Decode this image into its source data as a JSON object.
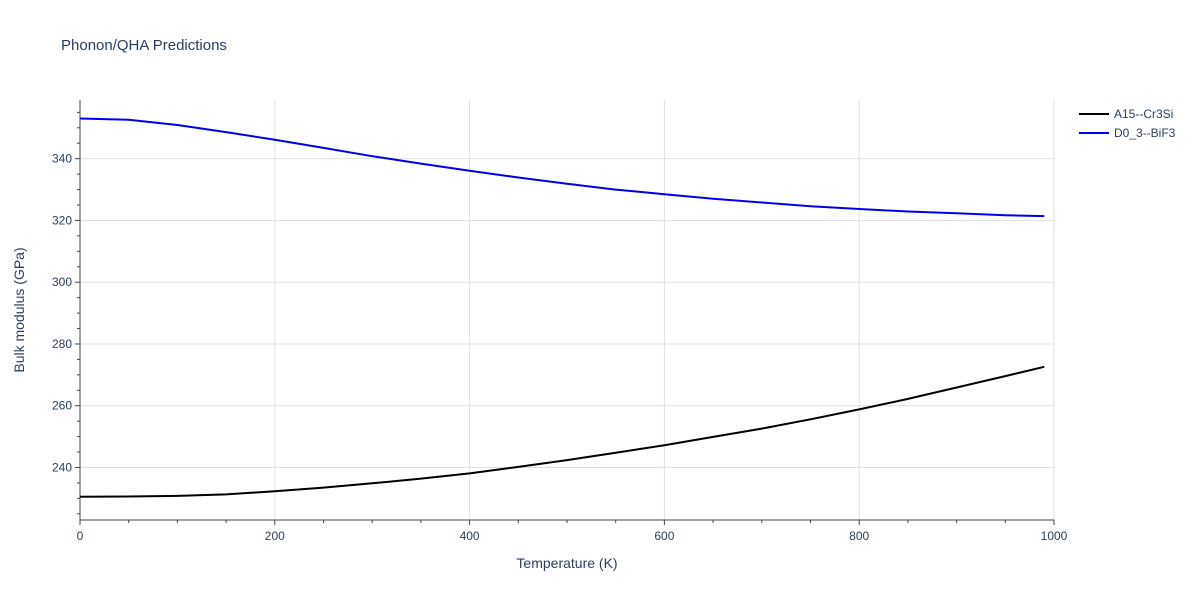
{
  "chart_data": {
    "type": "line",
    "title": "Phonon/QHA Predictions",
    "xlabel": "Temperature (K)",
    "ylabel": "Bulk modulus (GPa)",
    "xlim": [
      0,
      1000
    ],
    "ylim": [
      223,
      359
    ],
    "xticks": [
      0,
      200,
      400,
      600,
      800,
      1000
    ],
    "yticks": [
      240,
      260,
      280,
      300,
      320,
      340
    ],
    "grid": true,
    "legend_position": "top-right",
    "series": [
      {
        "name": "A15--Cr3Si",
        "color": "#000000",
        "x": [
          0,
          50,
          100,
          150,
          200,
          250,
          300,
          350,
          400,
          450,
          500,
          550,
          600,
          650,
          700,
          750,
          800,
          850,
          900,
          950,
          990
        ],
        "y": [
          230.5,
          230.6,
          230.8,
          231.3,
          232.3,
          233.5,
          234.9,
          236.4,
          238.1,
          240.2,
          242.4,
          244.8,
          247.2,
          249.9,
          252.6,
          255.6,
          258.8,
          262.2,
          265.9,
          269.6,
          272.6
        ]
      },
      {
        "name": "D0_3--BiF3",
        "color": "#0000ee",
        "x": [
          0,
          50,
          100,
          150,
          200,
          250,
          300,
          350,
          400,
          450,
          500,
          550,
          600,
          650,
          700,
          750,
          800,
          850,
          900,
          950,
          990
        ],
        "y": [
          353.0,
          352.6,
          350.9,
          348.6,
          346.1,
          343.5,
          340.8,
          338.4,
          336.1,
          333.9,
          331.9,
          330.0,
          328.5,
          327.0,
          325.8,
          324.6,
          323.7,
          322.9,
          322.3,
          321.7,
          321.4
        ]
      }
    ]
  }
}
